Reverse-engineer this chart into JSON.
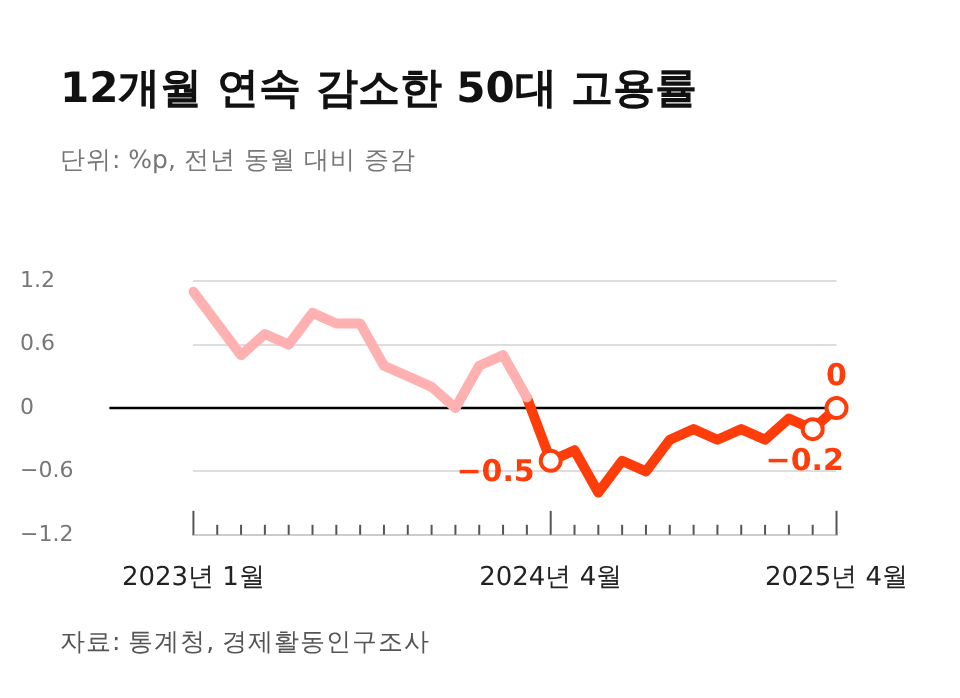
{
  "chart_data": {
    "type": "line",
    "title": "12개월 연속 감소한 50대 고용률",
    "subtitle": "단위: %p, 전년 동월 대비 증감",
    "annotations": [
      "자료: 통계청, 경제활동인구조사"
    ],
    "categories": [
      "2023년 1월",
      null,
      null,
      null,
      null,
      null,
      null,
      null,
      null,
      null,
      null,
      null,
      null,
      null,
      null,
      "2024년 4월",
      null,
      null,
      null,
      null,
      null,
      null,
      null,
      null,
      null,
      null,
      null,
      "2025년 4월"
    ],
    "series": [
      {
        "color": "#ffb0b0",
        "marker": "none",
        "values": [
          1.1,
          0.8,
          0.5,
          0.7,
          0.6,
          0.9,
          0.8,
          0.8,
          0.4,
          0.3,
          0.2,
          0.0,
          0.4,
          0.5,
          0.1,
          null,
          null,
          null,
          null,
          null,
          null,
          null,
          null,
          null,
          null,
          null,
          null,
          null
        ]
      },
      {
        "color": "#ff3d0a",
        "marker": "none",
        "values": [
          null,
          null,
          null,
          null,
          null,
          null,
          null,
          null,
          null,
          null,
          null,
          null,
          null,
          null,
          0.1,
          -0.5,
          -0.4,
          -0.8,
          -0.5,
          -0.6,
          -0.3,
          -0.2,
          -0.3,
          -0.2,
          -0.3,
          -0.1,
          -0.2,
          0
        ]
      },
      {
        "type": "scatter",
        "marker": "circle",
        "color": "#ff3d0a",
        "values": [
          null,
          null,
          null,
          null,
          null,
          null,
          null,
          null,
          null,
          null,
          null,
          null,
          null,
          null,
          null,
          -0.5,
          null,
          null,
          null,
          null,
          null,
          null,
          null,
          null,
          null,
          null,
          -0.2,
          0
        ],
        "value_labels": [
          null,
          null,
          null,
          null,
          null,
          null,
          null,
          null,
          null,
          null,
          null,
          null,
          null,
          null,
          null,
          "−0.5",
          null,
          null,
          null,
          null,
          null,
          null,
          null,
          null,
          null,
          null,
          "−0.2",
          "0"
        ]
      }
    ],
    "ylim": [
      -1.2,
      1.2
    ],
    "yticks": [
      {
        "value": -1.2,
        "label": "−1.2"
      },
      {
        "value": -0.6,
        "label": "−0.6"
      },
      0,
      0.6,
      1.2
    ],
    "ref_lines": [
      {
        "axis": "y",
        "value": 0,
        "color": "#000000"
      }
    ],
    "grid": "y",
    "legend": false
  }
}
